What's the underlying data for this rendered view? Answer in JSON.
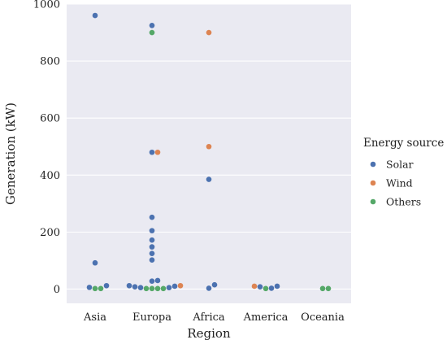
{
  "chart_data": {
    "type": "scatter",
    "xlabel": "Region",
    "ylabel": "Generation (kW)",
    "categories": [
      "Asia",
      "Europa",
      "Africa",
      "America",
      "Oceania"
    ],
    "ylim": [
      -50,
      1000
    ],
    "yticks": [
      0,
      200,
      400,
      600,
      800,
      1000
    ],
    "grid": true,
    "legend": {
      "title": "Energy source",
      "placement": "right",
      "entries": [
        "Solar",
        "Wind",
        "Others"
      ]
    },
    "colors": {
      "Solar": "#4c72b0",
      "Wind": "#dd8452",
      "Others": "#55a868",
      "background": "#eaeaf2",
      "grid": "#ffffff"
    },
    "series": [
      {
        "name": "Solar",
        "points": [
          {
            "x": "Asia",
            "y": 960
          },
          {
            "x": "Asia",
            "y": 92
          },
          {
            "x": "Asia",
            "y": 12
          },
          {
            "x": "Asia",
            "y": 6
          },
          {
            "x": "Europa",
            "y": 925
          },
          {
            "x": "Europa",
            "y": 480
          },
          {
            "x": "Europa",
            "y": 252
          },
          {
            "x": "Europa",
            "y": 205
          },
          {
            "x": "Europa",
            "y": 172
          },
          {
            "x": "Europa",
            "y": 148
          },
          {
            "x": "Europa",
            "y": 125
          },
          {
            "x": "Europa",
            "y": 102
          },
          {
            "x": "Europa",
            "y": 30
          },
          {
            "x": "Europa",
            "y": 28
          },
          {
            "x": "Europa",
            "y": 10
          },
          {
            "x": "Europa",
            "y": 5
          },
          {
            "x": "Europa",
            "y": 5
          },
          {
            "x": "Europa",
            "y": 8
          },
          {
            "x": "Europa",
            "y": 12
          },
          {
            "x": "Africa",
            "y": 385
          },
          {
            "x": "Africa",
            "y": 15
          },
          {
            "x": "Africa",
            "y": 3
          },
          {
            "x": "America",
            "y": 8
          },
          {
            "x": "America",
            "y": 3
          },
          {
            "x": "America",
            "y": 10
          }
        ]
      },
      {
        "name": "Wind",
        "points": [
          {
            "x": "Europa",
            "y": 480
          },
          {
            "x": "Europa",
            "y": 12
          },
          {
            "x": "Africa",
            "y": 900
          },
          {
            "x": "Africa",
            "y": 500
          },
          {
            "x": "America",
            "y": 10
          }
        ]
      },
      {
        "name": "Others",
        "points": [
          {
            "x": "Asia",
            "y": 2
          },
          {
            "x": "Asia",
            "y": 2
          },
          {
            "x": "Europa",
            "y": 900
          },
          {
            "x": "Europa",
            "y": 2
          },
          {
            "x": "Europa",
            "y": 2
          },
          {
            "x": "Europa",
            "y": 2
          },
          {
            "x": "Europa",
            "y": 2
          },
          {
            "x": "America",
            "y": 2
          },
          {
            "x": "Oceania",
            "y": 2
          },
          {
            "x": "Oceania",
            "y": 2
          }
        ]
      }
    ]
  }
}
